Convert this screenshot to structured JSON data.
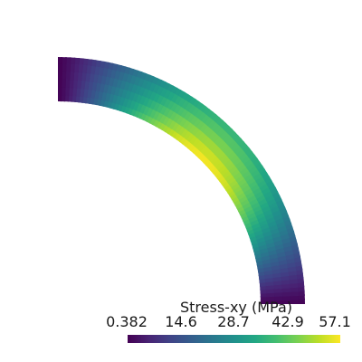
{
  "chart_data": {
    "type": "heatmap",
    "title": "",
    "colorbar": {
      "title": "Stress-xy (MPa)",
      "ticks": [
        "0.382",
        "14.6",
        "28.7",
        "42.9",
        "57.1"
      ],
      "range": [
        0.382,
        57.1
      ],
      "colormap": "viridis",
      "orientation": "horizontal"
    },
    "field": {
      "geometry": "quarter-annulus",
      "angle_deg": [
        0,
        90
      ],
      "value_at_ends": 0.382,
      "value_max": 57.1,
      "max_location": "inner edge at 45 degrees"
    }
  }
}
